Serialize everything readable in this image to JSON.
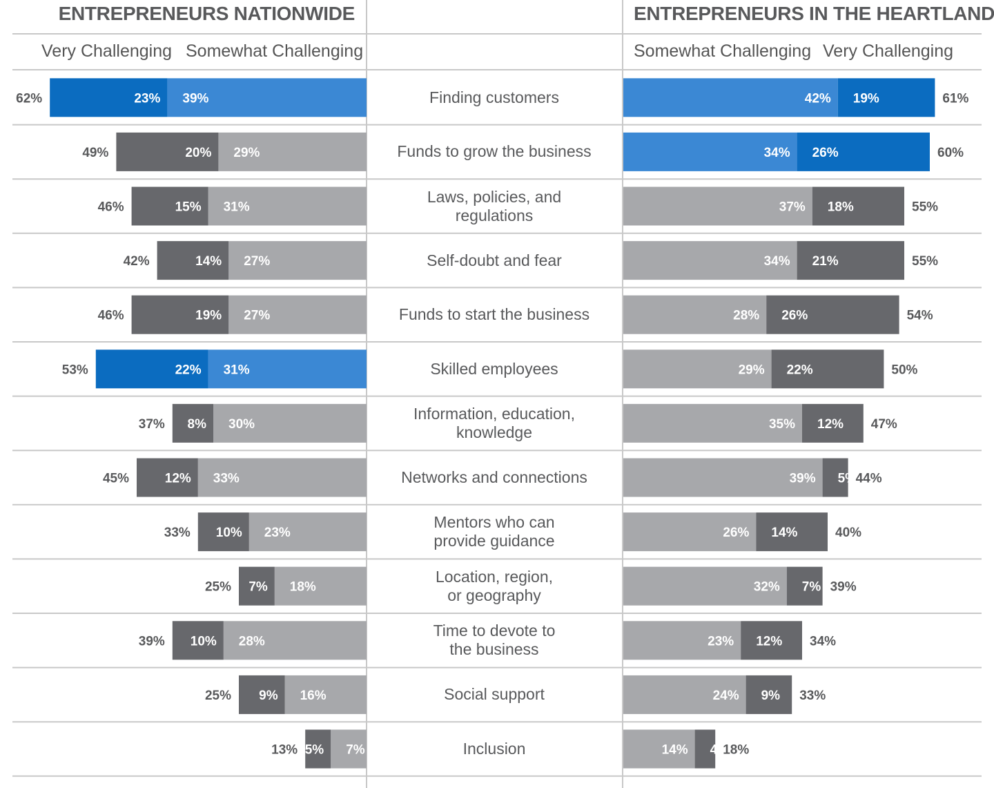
{
  "header": {
    "left_title": "ENTREPRENEURS NATIONWIDE",
    "right_title": "ENTREPRENEURS IN THE HEARTLAND",
    "left_subheaders": [
      "Very Challenging",
      "Somewhat Challenging"
    ],
    "right_subheaders": [
      "Somewhat Challenging",
      "Very Challenging"
    ]
  },
  "colors": {
    "very_gray": "#67686c",
    "somewhat_gray": "#a7a8ab",
    "very_blue": "#0b6cc0",
    "somewhat_blue": "#3b88d4",
    "rule": "#c8c8c8"
  },
  "chart_data": {
    "type": "bar",
    "orientation": "horizontal-diverging",
    "series_names": [
      "Very Challenging",
      "Somewhat Challenging"
    ],
    "categories": [
      "Finding customers",
      "Funds to grow the business",
      "Laws, policies, and\nregulations",
      "Self-doubt and fear",
      "Funds to start the business",
      "Skilled employees",
      "Information, education,\nknowledge",
      "Networks and connections",
      "Mentors who can\nprovide guidance",
      "Location, region,\nor geography",
      "Time to devote to\nthe business",
      "Social support",
      "Inclusion"
    ],
    "nationwide": {
      "very": [
        23,
        20,
        15,
        14,
        19,
        22,
        8,
        12,
        10,
        7,
        10,
        9,
        5
      ],
      "somewhat": [
        39,
        29,
        31,
        27,
        27,
        31,
        30,
        33,
        23,
        18,
        28,
        16,
        7
      ],
      "total": [
        62,
        49,
        46,
        42,
        46,
        53,
        37,
        45,
        33,
        25,
        39,
        25,
        13
      ],
      "highlight": [
        true,
        false,
        false,
        false,
        false,
        true,
        false,
        false,
        false,
        false,
        false,
        false,
        false
      ]
    },
    "heartland": {
      "somewhat": [
        42,
        34,
        37,
        34,
        28,
        29,
        35,
        39,
        26,
        32,
        23,
        24,
        14
      ],
      "very": [
        19,
        26,
        18,
        21,
        26,
        22,
        12,
        5,
        14,
        7,
        12,
        9,
        4
      ],
      "total": [
        61,
        60,
        55,
        55,
        54,
        50,
        47,
        44,
        40,
        39,
        34,
        33,
        18
      ],
      "highlight": [
        true,
        true,
        false,
        false,
        false,
        false,
        false,
        false,
        false,
        false,
        false,
        false,
        false
      ]
    },
    "unit": "%"
  }
}
